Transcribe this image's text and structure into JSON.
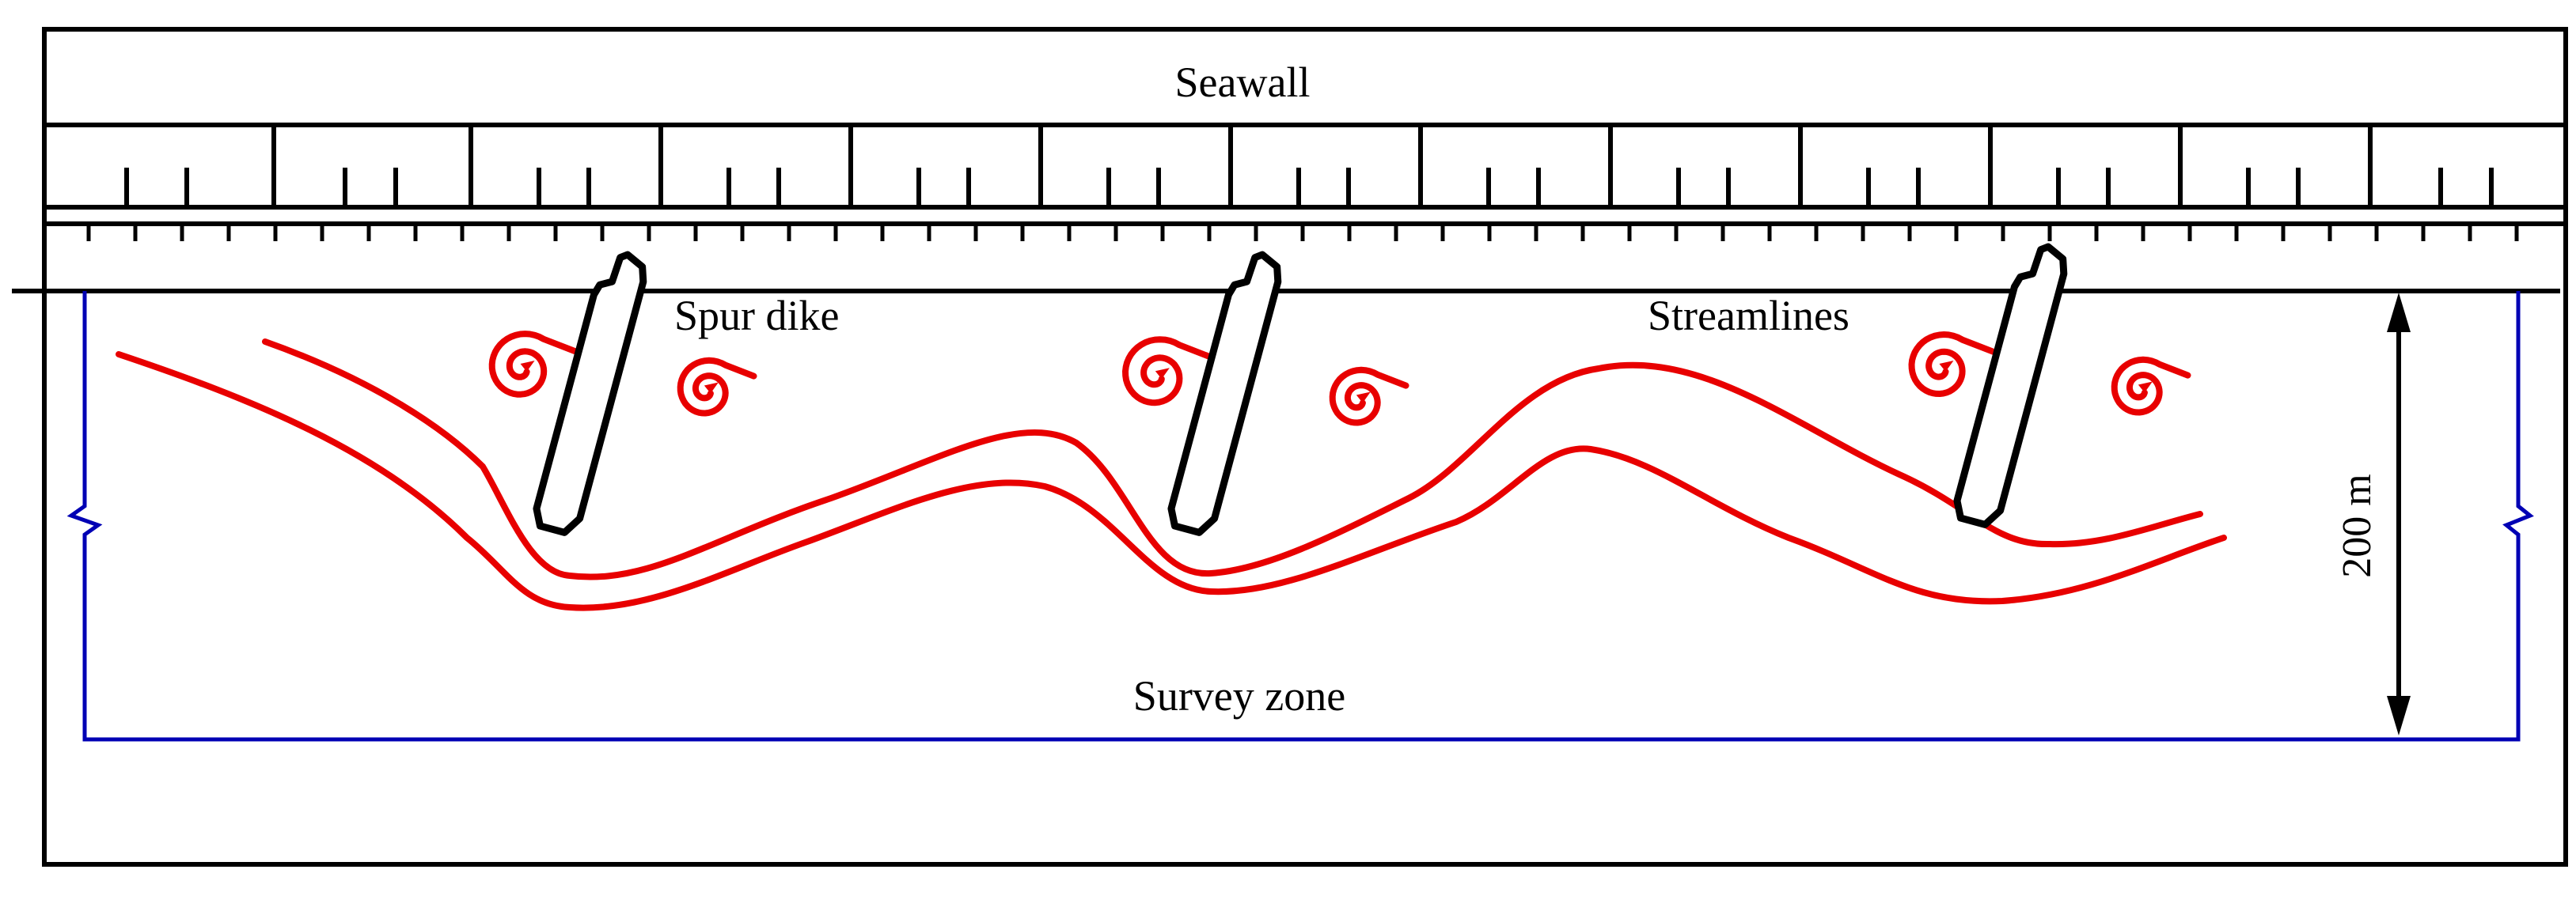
{
  "labels": {
    "seawall": "Seawall",
    "spur_dike": "Spur dike",
    "streamlines": "Streamlines",
    "survey_zone": "Survey zone",
    "distance": "200 m"
  },
  "colors": {
    "outline": "#000000",
    "streamline": "#e80000",
    "survey_boundary": "#0000b4",
    "background": "#ffffff"
  },
  "counts": {
    "spur_dikes": 3,
    "eddies": 6,
    "streamlines": 2
  }
}
